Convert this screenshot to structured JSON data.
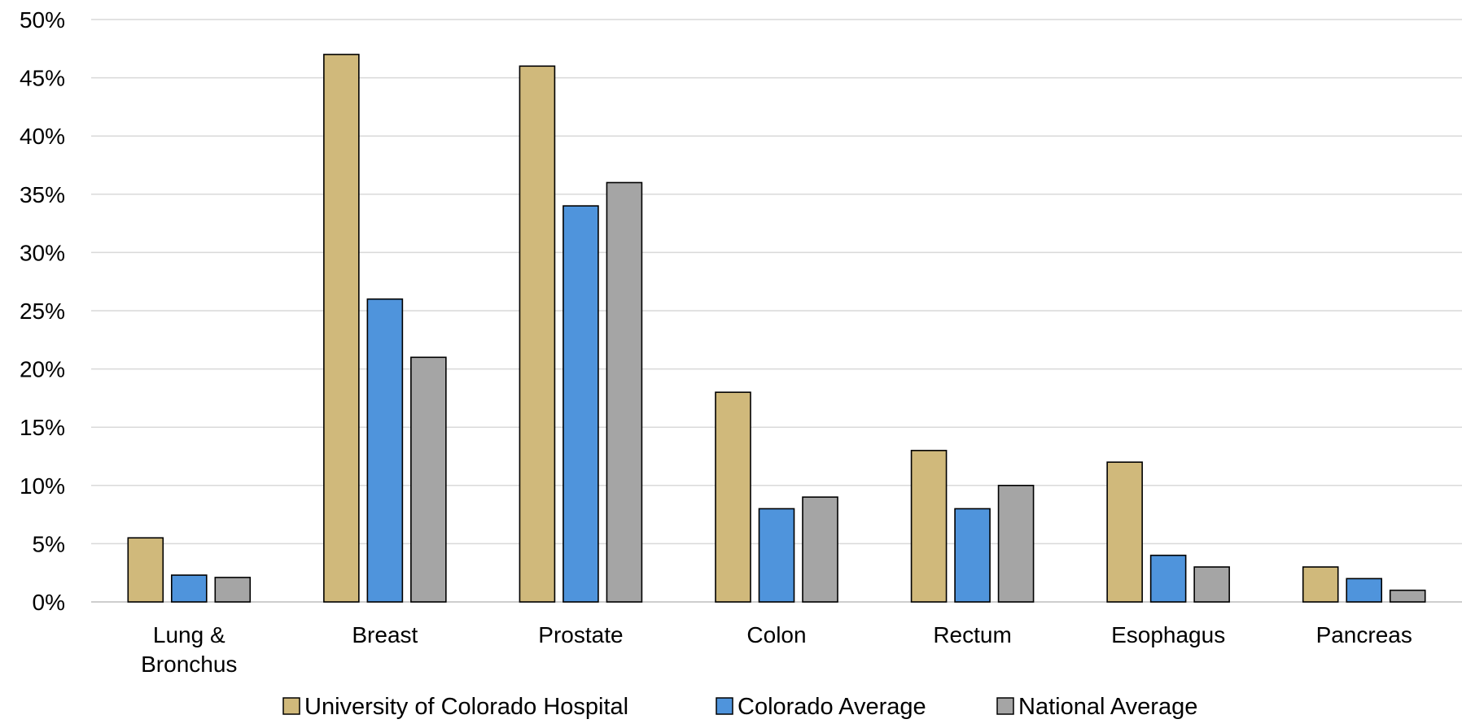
{
  "chart_data": {
    "type": "bar",
    "title": "",
    "xlabel": "",
    "ylabel": "",
    "categories": [
      [
        "Lung &",
        "Bronchus"
      ],
      [
        "Breast"
      ],
      [
        "Prostate"
      ],
      [
        "Colon"
      ],
      [
        "Rectum"
      ],
      [
        "Esophagus"
      ],
      [
        "Pancreas"
      ]
    ],
    "series": [
      {
        "name": "University of Colorado Hospital",
        "color": "#D0B97B",
        "values": [
          5.5,
          47,
          46,
          18,
          13,
          12,
          3
        ]
      },
      {
        "name": "Colorado Average",
        "color": "#4F94DC",
        "values": [
          2.3,
          26,
          34,
          8,
          8,
          4,
          2
        ]
      },
      {
        "name": "National Average",
        "color": "#A5A5A5",
        "values": [
          2.1,
          21,
          36,
          9,
          10,
          3,
          1
        ]
      }
    ],
    "ylim": [
      0,
      50
    ],
    "yticks": [
      0,
      5,
      10,
      15,
      20,
      25,
      30,
      35,
      40,
      45,
      50
    ],
    "ytick_labels": [
      "0%",
      "5%",
      "10%",
      "15%",
      "20%",
      "25%",
      "30%",
      "35%",
      "40%",
      "45%",
      "50%"
    ],
    "grid": true,
    "legend_position": "bottom"
  }
}
